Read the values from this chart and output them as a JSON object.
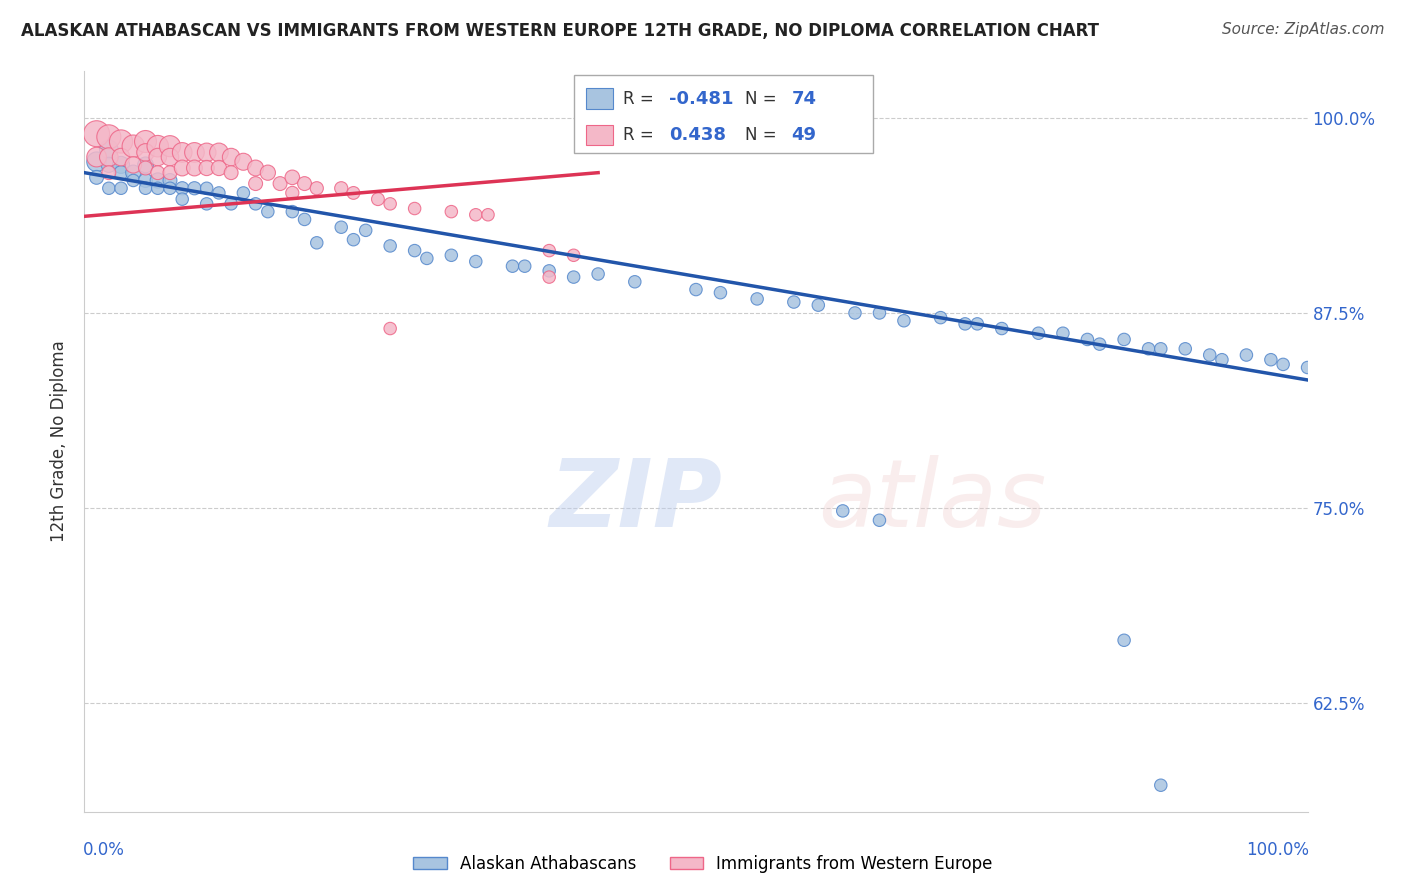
{
  "title": "ALASKAN ATHABASCAN VS IMMIGRANTS FROM WESTERN EUROPE 12TH GRADE, NO DIPLOMA CORRELATION CHART",
  "source": "Source: ZipAtlas.com",
  "ylabel": "12th Grade, No Diploma",
  "y_tick_labels": [
    "62.5%",
    "75.0%",
    "87.5%",
    "100.0%"
  ],
  "y_tick_values": [
    0.625,
    0.75,
    0.875,
    1.0
  ],
  "x_range": [
    0.0,
    1.0
  ],
  "y_range": [
    0.555,
    1.03
  ],
  "blue_R": -0.481,
  "blue_N": 74,
  "pink_R": 0.438,
  "pink_N": 49,
  "blue_color": "#A8C4E0",
  "pink_color": "#F4B8C8",
  "blue_edge_color": "#5588CC",
  "pink_edge_color": "#EE6688",
  "blue_line_color": "#2255AA",
  "pink_line_color": "#DD3355",
  "legend_label_blue": "Alaskan Athabascans",
  "legend_label_pink": "Immigrants from Western Europe",
  "blue_line_x0": 0.0,
  "blue_line_y0": 0.965,
  "blue_line_x1": 1.0,
  "blue_line_y1": 0.832,
  "pink_line_x0": 0.0,
  "pink_line_y0": 0.937,
  "pink_line_x1": 0.42,
  "pink_line_y1": 0.965,
  "blue_scatter_x": [
    0.01,
    0.01,
    0.02,
    0.02,
    0.02,
    0.03,
    0.03,
    0.03,
    0.04,
    0.04,
    0.05,
    0.05,
    0.05,
    0.06,
    0.06,
    0.07,
    0.07,
    0.08,
    0.08,
    0.09,
    0.1,
    0.1,
    0.11,
    0.12,
    0.13,
    0.14,
    0.15,
    0.17,
    0.18,
    0.19,
    0.21,
    0.22,
    0.23,
    0.25,
    0.27,
    0.28,
    0.3,
    0.32,
    0.35,
    0.36,
    0.38,
    0.4,
    0.42,
    0.45,
    0.5,
    0.52,
    0.55,
    0.58,
    0.6,
    0.63,
    0.65,
    0.67,
    0.7,
    0.72,
    0.73,
    0.75,
    0.78,
    0.8,
    0.82,
    0.83,
    0.85,
    0.87,
    0.88,
    0.9,
    0.92,
    0.93,
    0.95,
    0.97,
    0.98,
    1.0,
    0.62,
    0.65,
    0.85,
    0.88
  ],
  "blue_scatter_y": [
    0.972,
    0.962,
    0.98,
    0.97,
    0.955,
    0.97,
    0.965,
    0.955,
    0.965,
    0.96,
    0.97,
    0.96,
    0.955,
    0.96,
    0.955,
    0.96,
    0.955,
    0.955,
    0.948,
    0.955,
    0.955,
    0.945,
    0.952,
    0.945,
    0.952,
    0.945,
    0.94,
    0.94,
    0.935,
    0.92,
    0.93,
    0.922,
    0.928,
    0.918,
    0.915,
    0.91,
    0.912,
    0.908,
    0.905,
    0.905,
    0.902,
    0.898,
    0.9,
    0.895,
    0.89,
    0.888,
    0.884,
    0.882,
    0.88,
    0.875,
    0.875,
    0.87,
    0.872,
    0.868,
    0.868,
    0.865,
    0.862,
    0.862,
    0.858,
    0.855,
    0.858,
    0.852,
    0.852,
    0.852,
    0.848,
    0.845,
    0.848,
    0.845,
    0.842,
    0.84,
    0.748,
    0.742,
    0.665,
    0.572
  ],
  "blue_scatter_size": [
    200,
    100,
    180,
    120,
    80,
    150,
    100,
    80,
    120,
    80,
    130,
    100,
    80,
    120,
    80,
    100,
    80,
    90,
    80,
    90,
    80,
    80,
    80,
    80,
    80,
    80,
    80,
    80,
    80,
    80,
    80,
    80,
    80,
    80,
    80,
    80,
    80,
    80,
    80,
    80,
    80,
    80,
    80,
    80,
    80,
    80,
    80,
    80,
    80,
    80,
    80,
    80,
    80,
    80,
    80,
    80,
    80,
    80,
    80,
    80,
    80,
    80,
    80,
    80,
    80,
    80,
    80,
    80,
    80,
    80,
    80,
    80,
    80,
    80
  ],
  "pink_scatter_x": [
    0.01,
    0.01,
    0.02,
    0.02,
    0.02,
    0.03,
    0.03,
    0.04,
    0.04,
    0.05,
    0.05,
    0.05,
    0.06,
    0.06,
    0.06,
    0.07,
    0.07,
    0.07,
    0.08,
    0.08,
    0.09,
    0.09,
    0.1,
    0.1,
    0.11,
    0.11,
    0.12,
    0.12,
    0.13,
    0.14,
    0.14,
    0.15,
    0.16,
    0.17,
    0.17,
    0.18,
    0.19,
    0.21,
    0.22,
    0.24,
    0.25,
    0.27,
    0.3,
    0.32,
    0.33,
    0.38,
    0.4,
    0.38,
    0.25
  ],
  "pink_scatter_y": [
    0.99,
    0.975,
    0.988,
    0.975,
    0.965,
    0.985,
    0.975,
    0.982,
    0.97,
    0.985,
    0.978,
    0.968,
    0.982,
    0.975,
    0.965,
    0.982,
    0.975,
    0.965,
    0.978,
    0.968,
    0.978,
    0.968,
    0.978,
    0.968,
    0.978,
    0.968,
    0.975,
    0.965,
    0.972,
    0.968,
    0.958,
    0.965,
    0.958,
    0.962,
    0.952,
    0.958,
    0.955,
    0.955,
    0.952,
    0.948,
    0.945,
    0.942,
    0.94,
    0.938,
    0.938,
    0.915,
    0.912,
    0.898,
    0.865
  ],
  "pink_scatter_size": [
    350,
    200,
    300,
    180,
    100,
    280,
    160,
    260,
    140,
    250,
    160,
    100,
    240,
    160,
    100,
    230,
    160,
    100,
    200,
    130,
    200,
    130,
    180,
    120,
    180,
    120,
    160,
    100,
    150,
    130,
    100,
    120,
    100,
    110,
    90,
    100,
    90,
    90,
    85,
    85,
    80,
    80,
    80,
    80,
    80,
    80,
    80,
    80,
    80
  ]
}
